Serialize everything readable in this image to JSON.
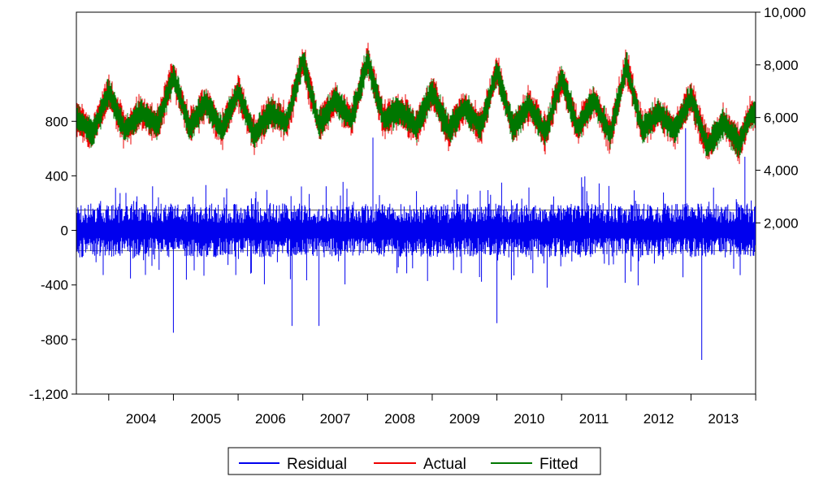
{
  "chart_data": {
    "type": "line",
    "title": "",
    "x_tick_labels": [
      "2004",
      "2005",
      "2006",
      "2007",
      "2008",
      "2009",
      "2010",
      "2011",
      "2012",
      "2013"
    ],
    "x_range": [
      "2003-07-01",
      "2013-12-31"
    ],
    "left_axis": {
      "ticks": [
        800,
        400,
        0,
        -400,
        -800,
        -1200
      ],
      "tick_labels": [
        "800",
        "400",
        "0",
        "-400",
        "-800",
        "-1,200"
      ],
      "range": [
        -1200,
        1600
      ],
      "applies_to": "Residual"
    },
    "right_axis": {
      "ticks": [
        2000,
        4000,
        6000,
        8000,
        10000
      ],
      "tick_labels": [
        "2,000",
        "4,000",
        "6,000",
        "8,000",
        "10,000"
      ],
      "range": [
        -4500,
        10000
      ],
      "applies_to": [
        "Actual",
        "Fitted"
      ]
    },
    "reference_lines": [
      {
        "series": "Residual",
        "value": 0
      },
      {
        "series": "Residual",
        "value": 150
      },
      {
        "series": "Residual",
        "value": -150
      }
    ],
    "grid": false,
    "legend": {
      "placement": "bottom-center",
      "entries": [
        {
          "name": "Residual",
          "color": "#0000ee"
        },
        {
          "name": "Actual",
          "color": "#ee0000"
        },
        {
          "name": "Fitted",
          "color": "#007700"
        }
      ]
    },
    "series": [
      {
        "name": "Actual",
        "axis": "right",
        "color": "#ee0000",
        "x": [
          "2003-07",
          "2003-10",
          "2004-01",
          "2004-04",
          "2004-07",
          "2004-10",
          "2005-01",
          "2005-04",
          "2005-07",
          "2005-10",
          "2006-01",
          "2006-04",
          "2006-07",
          "2006-10",
          "2007-01",
          "2007-04",
          "2007-07",
          "2007-10",
          "2008-01",
          "2008-04",
          "2008-07",
          "2008-10",
          "2009-01",
          "2009-04",
          "2009-07",
          "2009-10",
          "2010-01",
          "2010-04",
          "2010-07",
          "2010-10",
          "2011-01",
          "2011-04",
          "2011-07",
          "2011-10",
          "2012-01",
          "2012-04",
          "2012-07",
          "2012-10",
          "2013-01",
          "2013-04",
          "2013-07",
          "2013-10",
          "2013-12"
        ],
        "values": [
          6000,
          5400,
          7000,
          5500,
          6200,
          5700,
          7600,
          5600,
          6600,
          5500,
          7000,
          5300,
          6200,
          5800,
          8200,
          5700,
          6700,
          5900,
          8200,
          5900,
          6300,
          5600,
          7000,
          5500,
          6400,
          5600,
          7800,
          5600,
          6500,
          5400,
          7500,
          5600,
          6700,
          5300,
          8000,
          5500,
          6200,
          5500,
          6800,
          4900,
          5800,
          5000,
          6100
        ],
        "band_halfwidth": 700
      },
      {
        "name": "Fitted",
        "axis": "right",
        "color": "#007700",
        "x": [
          "2003-07",
          "2003-10",
          "2004-01",
          "2004-04",
          "2004-07",
          "2004-10",
          "2005-01",
          "2005-04",
          "2005-07",
          "2005-10",
          "2006-01",
          "2006-04",
          "2006-07",
          "2006-10",
          "2007-01",
          "2007-04",
          "2007-07",
          "2007-10",
          "2008-01",
          "2008-04",
          "2008-07",
          "2008-10",
          "2009-01",
          "2009-04",
          "2009-07",
          "2009-10",
          "2010-01",
          "2010-04",
          "2010-07",
          "2010-10",
          "2011-01",
          "2011-04",
          "2011-07",
          "2011-10",
          "2012-01",
          "2012-04",
          "2012-07",
          "2012-10",
          "2013-01",
          "2013-04",
          "2013-07",
          "2013-10",
          "2013-12"
        ],
        "values": [
          6000,
          5400,
          7000,
          5500,
          6200,
          5700,
          7600,
          5600,
          6600,
          5500,
          7000,
          5300,
          6200,
          5800,
          8200,
          5700,
          6700,
          5900,
          8200,
          5900,
          6300,
          5600,
          7000,
          5500,
          6400,
          5600,
          7800,
          5600,
          6500,
          5400,
          7500,
          5600,
          6700,
          5300,
          8000,
          5500,
          6200,
          5500,
          6800,
          4900,
          5800,
          5000,
          6100
        ],
        "band_halfwidth": 650
      },
      {
        "name": "Residual",
        "axis": "left",
        "color": "#0000ee",
        "x": [
          "2003-07",
          "2004-01",
          "2004-07",
          "2005-01",
          "2005-07",
          "2006-01",
          "2006-07",
          "2007-01",
          "2007-07",
          "2008-01",
          "2008-07",
          "2009-01",
          "2009-07",
          "2010-01",
          "2010-07",
          "2011-01",
          "2011-07",
          "2012-01",
          "2012-07",
          "2013-01",
          "2013-07",
          "2013-12"
        ],
        "values": [
          0,
          0,
          0,
          0,
          0,
          0,
          0,
          0,
          0,
          0,
          0,
          0,
          0,
          0,
          0,
          0,
          0,
          0,
          0,
          0,
          0,
          0
        ],
        "band_halfwidth": 180,
        "notable_extremes": [
          {
            "x": "2005-01",
            "value": -750
          },
          {
            "x": "2006-11",
            "value": -700
          },
          {
            "x": "2007-04",
            "value": -700
          },
          {
            "x": "2008-02",
            "value": 680
          },
          {
            "x": "2010-01",
            "value": -680
          },
          {
            "x": "2012-12",
            "value": 750
          },
          {
            "x": "2013-03",
            "value": -950
          },
          {
            "x": "2013-11",
            "value": 540
          }
        ]
      }
    ]
  }
}
